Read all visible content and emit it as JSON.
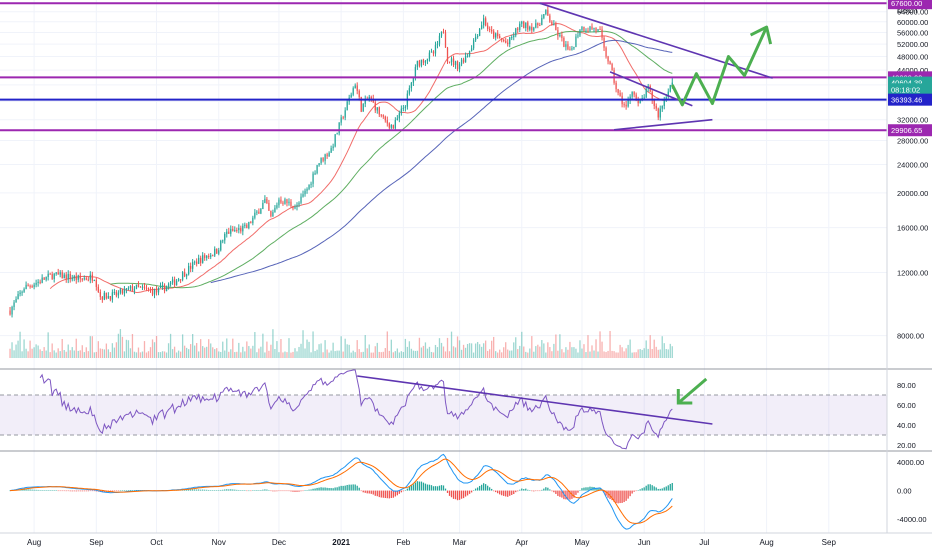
{
  "chart_data": {
    "type": "candlestick",
    "instrument": {
      "quote_unit": "USDT"
    },
    "price_panel": {
      "y_scale": "log",
      "ylim": [
        6500,
        69000
      ],
      "y_ticks": [
        "64000.00",
        "60000.00",
        "56000.00",
        "52000.00",
        "48000.00",
        "44000.00",
        "40000.00",
        "36000.00",
        "32000.00",
        "28000.00",
        "24000.00",
        "20000.00",
        "16000.00",
        "12000.00",
        "8000.00"
      ],
      "price_badges": [
        {
          "label": "67600.00",
          "value": 67600,
          "color": "#9c27b0"
        },
        {
          "label": "42000.00",
          "value": 42000,
          "color": "#9c27b0"
        },
        {
          "label": "40604.39",
          "value": 40604.39,
          "color": "#26a69a"
        },
        {
          "label": "08:18:02",
          "value": 38900,
          "color": "#26a69a"
        },
        {
          "label": "36393.46",
          "value": 36393.46,
          "color": "#2323c9"
        },
        {
          "label": "29906.65",
          "value": 29906.65,
          "color": "#9c27b0"
        }
      ],
      "horizontal_levels": [
        {
          "value": 67600,
          "color": "#9c27b0"
        },
        {
          "value": 42000,
          "color": "#9c27b0"
        },
        {
          "value": 36393.46,
          "color": "#2323c9"
        },
        {
          "value": 29906.65,
          "color": "#9c27b0"
        }
      ],
      "ohlc_anchor_closes": [
        [
          "2020-07-20",
          9400
        ],
        [
          "2020-07-27",
          10900
        ],
        [
          "2020-08-03",
          11300
        ],
        [
          "2020-08-10",
          11800
        ],
        [
          "2020-08-17",
          11700
        ],
        [
          "2020-08-24",
          11500
        ],
        [
          "2020-08-31",
          11700
        ],
        [
          "2020-09-03",
          10300
        ],
        [
          "2020-09-10",
          10350
        ],
        [
          "2020-09-20",
          10900
        ],
        [
          "2020-10-01",
          10600
        ],
        [
          "2020-10-10",
          11300
        ],
        [
          "2020-10-21",
          12900
        ],
        [
          "2020-10-31",
          13800
        ],
        [
          "2020-11-05",
          15500
        ],
        [
          "2020-11-15",
          16000
        ],
        [
          "2020-11-24",
          19000
        ],
        [
          "2020-11-27",
          17000
        ],
        [
          "2020-12-01",
          19200
        ],
        [
          "2020-12-10",
          18300
        ],
        [
          "2020-12-16",
          21000
        ],
        [
          "2020-12-20",
          24000
        ],
        [
          "2020-12-27",
          26500
        ],
        [
          "2021-01-02",
          33000
        ],
        [
          "2021-01-08",
          40500
        ],
        [
          "2021-01-11",
          34500
        ],
        [
          "2021-01-15",
          37000
        ],
        [
          "2021-01-22",
          32000
        ],
        [
          "2021-01-27",
          30500
        ],
        [
          "2021-02-02",
          35500
        ],
        [
          "2021-02-08",
          46000
        ],
        [
          "2021-02-16",
          49000
        ],
        [
          "2021-02-21",
          57000
        ],
        [
          "2021-02-23",
          47500
        ],
        [
          "2021-02-28",
          45300
        ],
        [
          "2021-03-05",
          48800
        ],
        [
          "2021-03-13",
          61000
        ],
        [
          "2021-03-16",
          56000
        ],
        [
          "2021-03-25",
          52000
        ],
        [
          "2021-03-31",
          58800
        ],
        [
          "2021-04-08",
          58000
        ],
        [
          "2021-04-13",
          63500
        ],
        [
          "2021-04-18",
          56500
        ],
        [
          "2021-04-25",
          49000
        ],
        [
          "2021-04-30",
          57700
        ],
        [
          "2021-05-07",
          57500
        ],
        [
          "2021-05-10",
          56000
        ],
        [
          "2021-05-12",
          50000
        ],
        [
          "2021-05-14",
          47000
        ],
        [
          "2021-05-19",
          37500
        ],
        [
          "2021-05-23",
          34500
        ],
        [
          "2021-05-26",
          39000
        ],
        [
          "2021-05-29",
          35000
        ],
        [
          "2021-06-03",
          39000
        ],
        [
          "2021-06-08",
          33000
        ],
        [
          "2021-06-13",
          39000
        ],
        [
          "2021-06-15",
          40604
        ]
      ],
      "overlays": [
        {
          "type": "moving-average",
          "color": "#ef5350"
        },
        {
          "type": "moving-average",
          "color": "#43a047"
        },
        {
          "type": "moving-average",
          "color": "#3949ab"
        }
      ],
      "trendlines": [
        {
          "kind": "descending-resistance",
          "from": [
            "2021-04-10",
            67600
          ],
          "to": [
            "2021-08-04",
            41800
          ],
          "color": "#5e35b1"
        },
        {
          "kind": "triangle-upper",
          "from": [
            "2021-05-15",
            43500
          ],
          "to": [
            "2021-06-25",
            35000
          ],
          "color": "#5e35b1"
        },
        {
          "kind": "triangle-lower",
          "from": [
            "2021-05-17",
            30000
          ],
          "to": [
            "2021-07-05",
            32000
          ],
          "color": "#5e35b1"
        }
      ],
      "projection_arrow": {
        "color": "#4caf50",
        "path": [
          [
            "2021-06-15",
            40000
          ],
          [
            "2021-06-20",
            35200
          ],
          [
            "2021-06-27",
            43000
          ],
          [
            "2021-07-05",
            35500
          ],
          [
            "2021-07-13",
            48000
          ],
          [
            "2021-07-21",
            42500
          ],
          [
            "2021-08-01",
            58000
          ]
        ]
      },
      "volume": {
        "overlay": true
      }
    },
    "rsi_panel": {
      "ylim": [
        15,
        95
      ],
      "y_ticks": [
        "80.00",
        "60.00",
        "40.00",
        "20.00"
      ],
      "band": [
        30,
        70
      ],
      "line_color": "#7e57c2",
      "trendline": {
        "from": [
          "2021-01-09",
          89
        ],
        "to": [
          "2021-07-05",
          41
        ],
        "color": "#5e35b1"
      },
      "arrow_color": "#4caf50"
    },
    "macd_panel": {
      "ylim": [
        -5800,
        5400
      ],
      "y_ticks": [
        "4000.00",
        "0.00",
        "-4000.00"
      ],
      "macd_color": "#2196f3",
      "signal_color": "#ff6d00",
      "histogram_colors": {
        "positive": "#26a69a",
        "negative": "#ef5350"
      }
    },
    "x_axis": {
      "ticks": [
        {
          "label": "Aug",
          "date": "2020-08-01"
        },
        {
          "label": "Sep",
          "date": "2020-09-01"
        },
        {
          "label": "Oct",
          "date": "2020-10-01"
        },
        {
          "label": "Nov",
          "date": "2020-11-01"
        },
        {
          "label": "Dec",
          "date": "2020-12-01"
        },
        {
          "label": "2021",
          "date": "2021-01-01",
          "bold": true
        },
        {
          "label": "Feb",
          "date": "2021-02-01"
        },
        {
          "label": "Mar",
          "date": "2021-03-01"
        },
        {
          "label": "Apr",
          "date": "2021-04-01"
        },
        {
          "label": "May",
          "date": "2021-05-01"
        },
        {
          "label": "Jun",
          "date": "2021-06-01"
        },
        {
          "label": "Jul",
          "date": "2021-07-01"
        },
        {
          "label": "Aug",
          "date": "2021-08-01"
        },
        {
          "label": "Sep",
          "date": "2021-09-01"
        }
      ],
      "range": [
        "2020-07-15",
        "2021-09-30"
      ]
    },
    "grid": true,
    "colors": {
      "up": "#26a69a",
      "down": "#ef5350",
      "grid": "#f0f3fa",
      "axis_text": "#131722"
    }
  }
}
